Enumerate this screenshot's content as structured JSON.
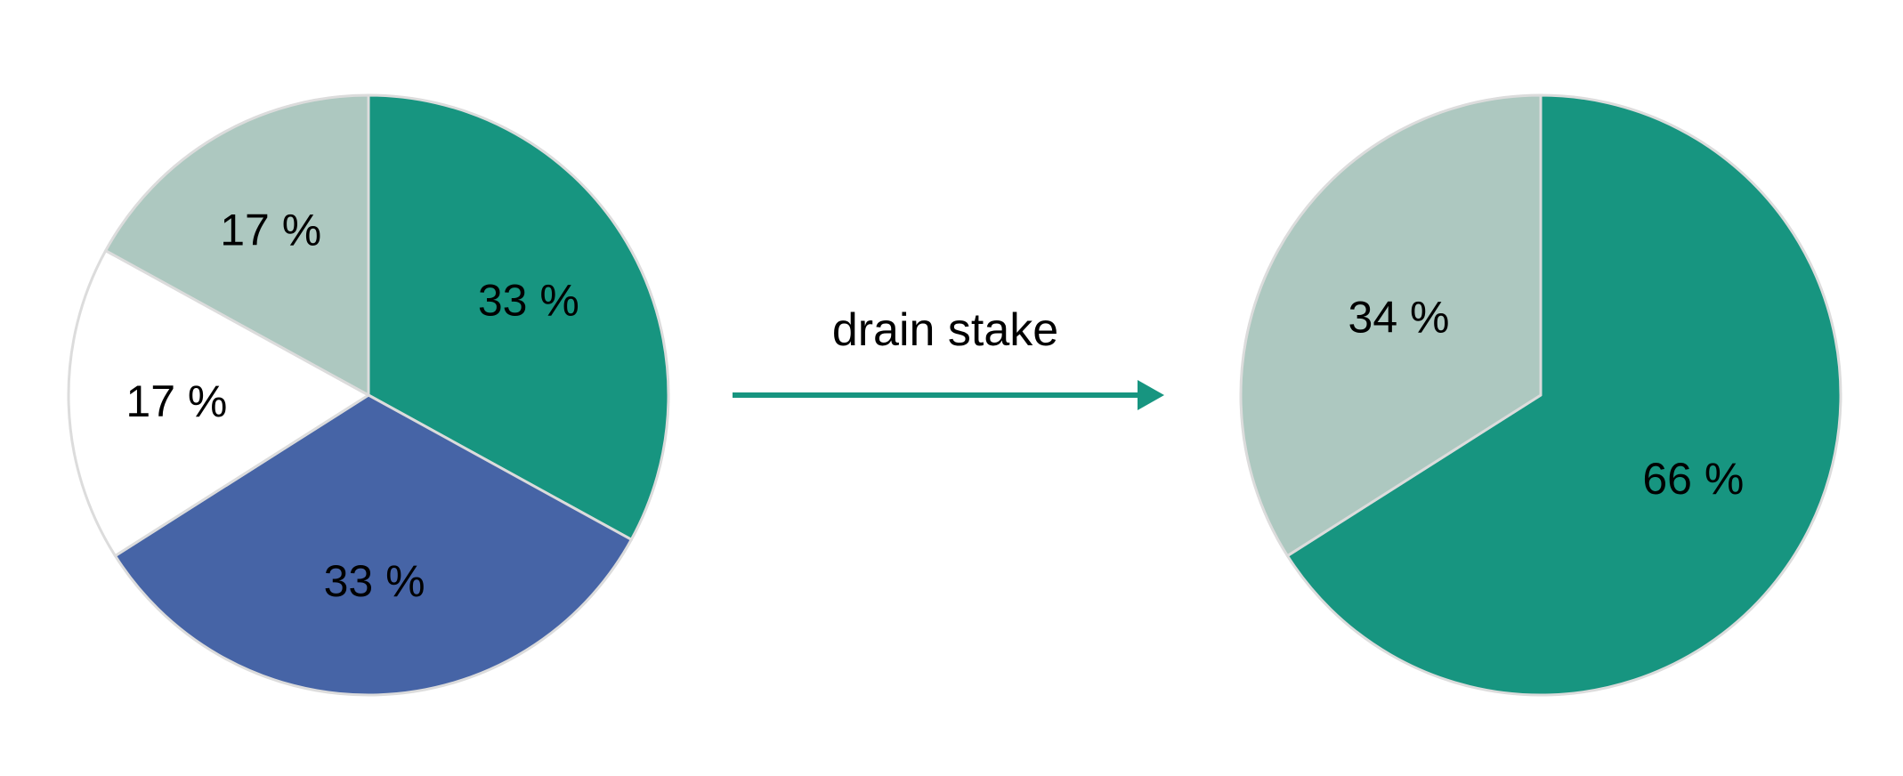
{
  "chart_data": [
    {
      "type": "pie",
      "slices": [
        {
          "label": "33 %",
          "value": 33,
          "color": "#179580"
        },
        {
          "label": "33 %",
          "value": 33,
          "color": "#4664a6"
        },
        {
          "label": "17 %",
          "value": 17,
          "color": "#ffffff"
        },
        {
          "label": "17 %",
          "value": 17,
          "color": "#adc8c0"
        }
      ]
    },
    {
      "type": "pie",
      "slices": [
        {
          "label": "66 %",
          "value": 66,
          "color": "#179580"
        },
        {
          "label": "34 %",
          "value": 34,
          "color": "#adc8c0"
        }
      ]
    }
  ],
  "arrow": {
    "label": "drain stake",
    "color": "#179580"
  }
}
